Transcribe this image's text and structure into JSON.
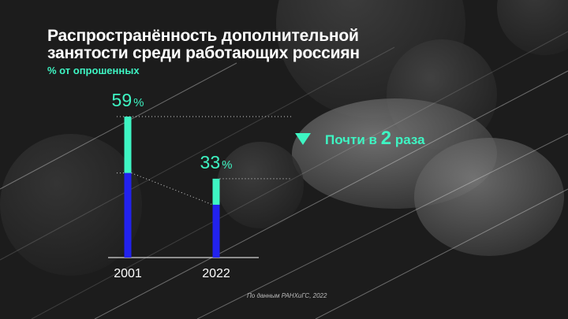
{
  "title": {
    "line1": "Распространённость дополнительной",
    "line2": "занятости среди работающих россиян"
  },
  "subtitle": "% от опрошенных",
  "chart_data": {
    "type": "bar",
    "categories": [
      "2001",
      "2022"
    ],
    "values": [
      59,
      33
    ],
    "value_labels": [
      {
        "number": "59",
        "unit": "%"
      },
      {
        "number": "33",
        "unit": "%"
      }
    ],
    "ylim": [
      0,
      59
    ],
    "colors": {
      "total": "#3ef5c3",
      "lower": "#2222ee",
      "axis": "#ffffff",
      "guide": "#ffffff"
    }
  },
  "callout": {
    "icon": "triangle-down-icon",
    "text_before": "Почти в ",
    "number": "2",
    "text_after": " раза"
  },
  "source": "По данным РАНХиГС, 2022"
}
